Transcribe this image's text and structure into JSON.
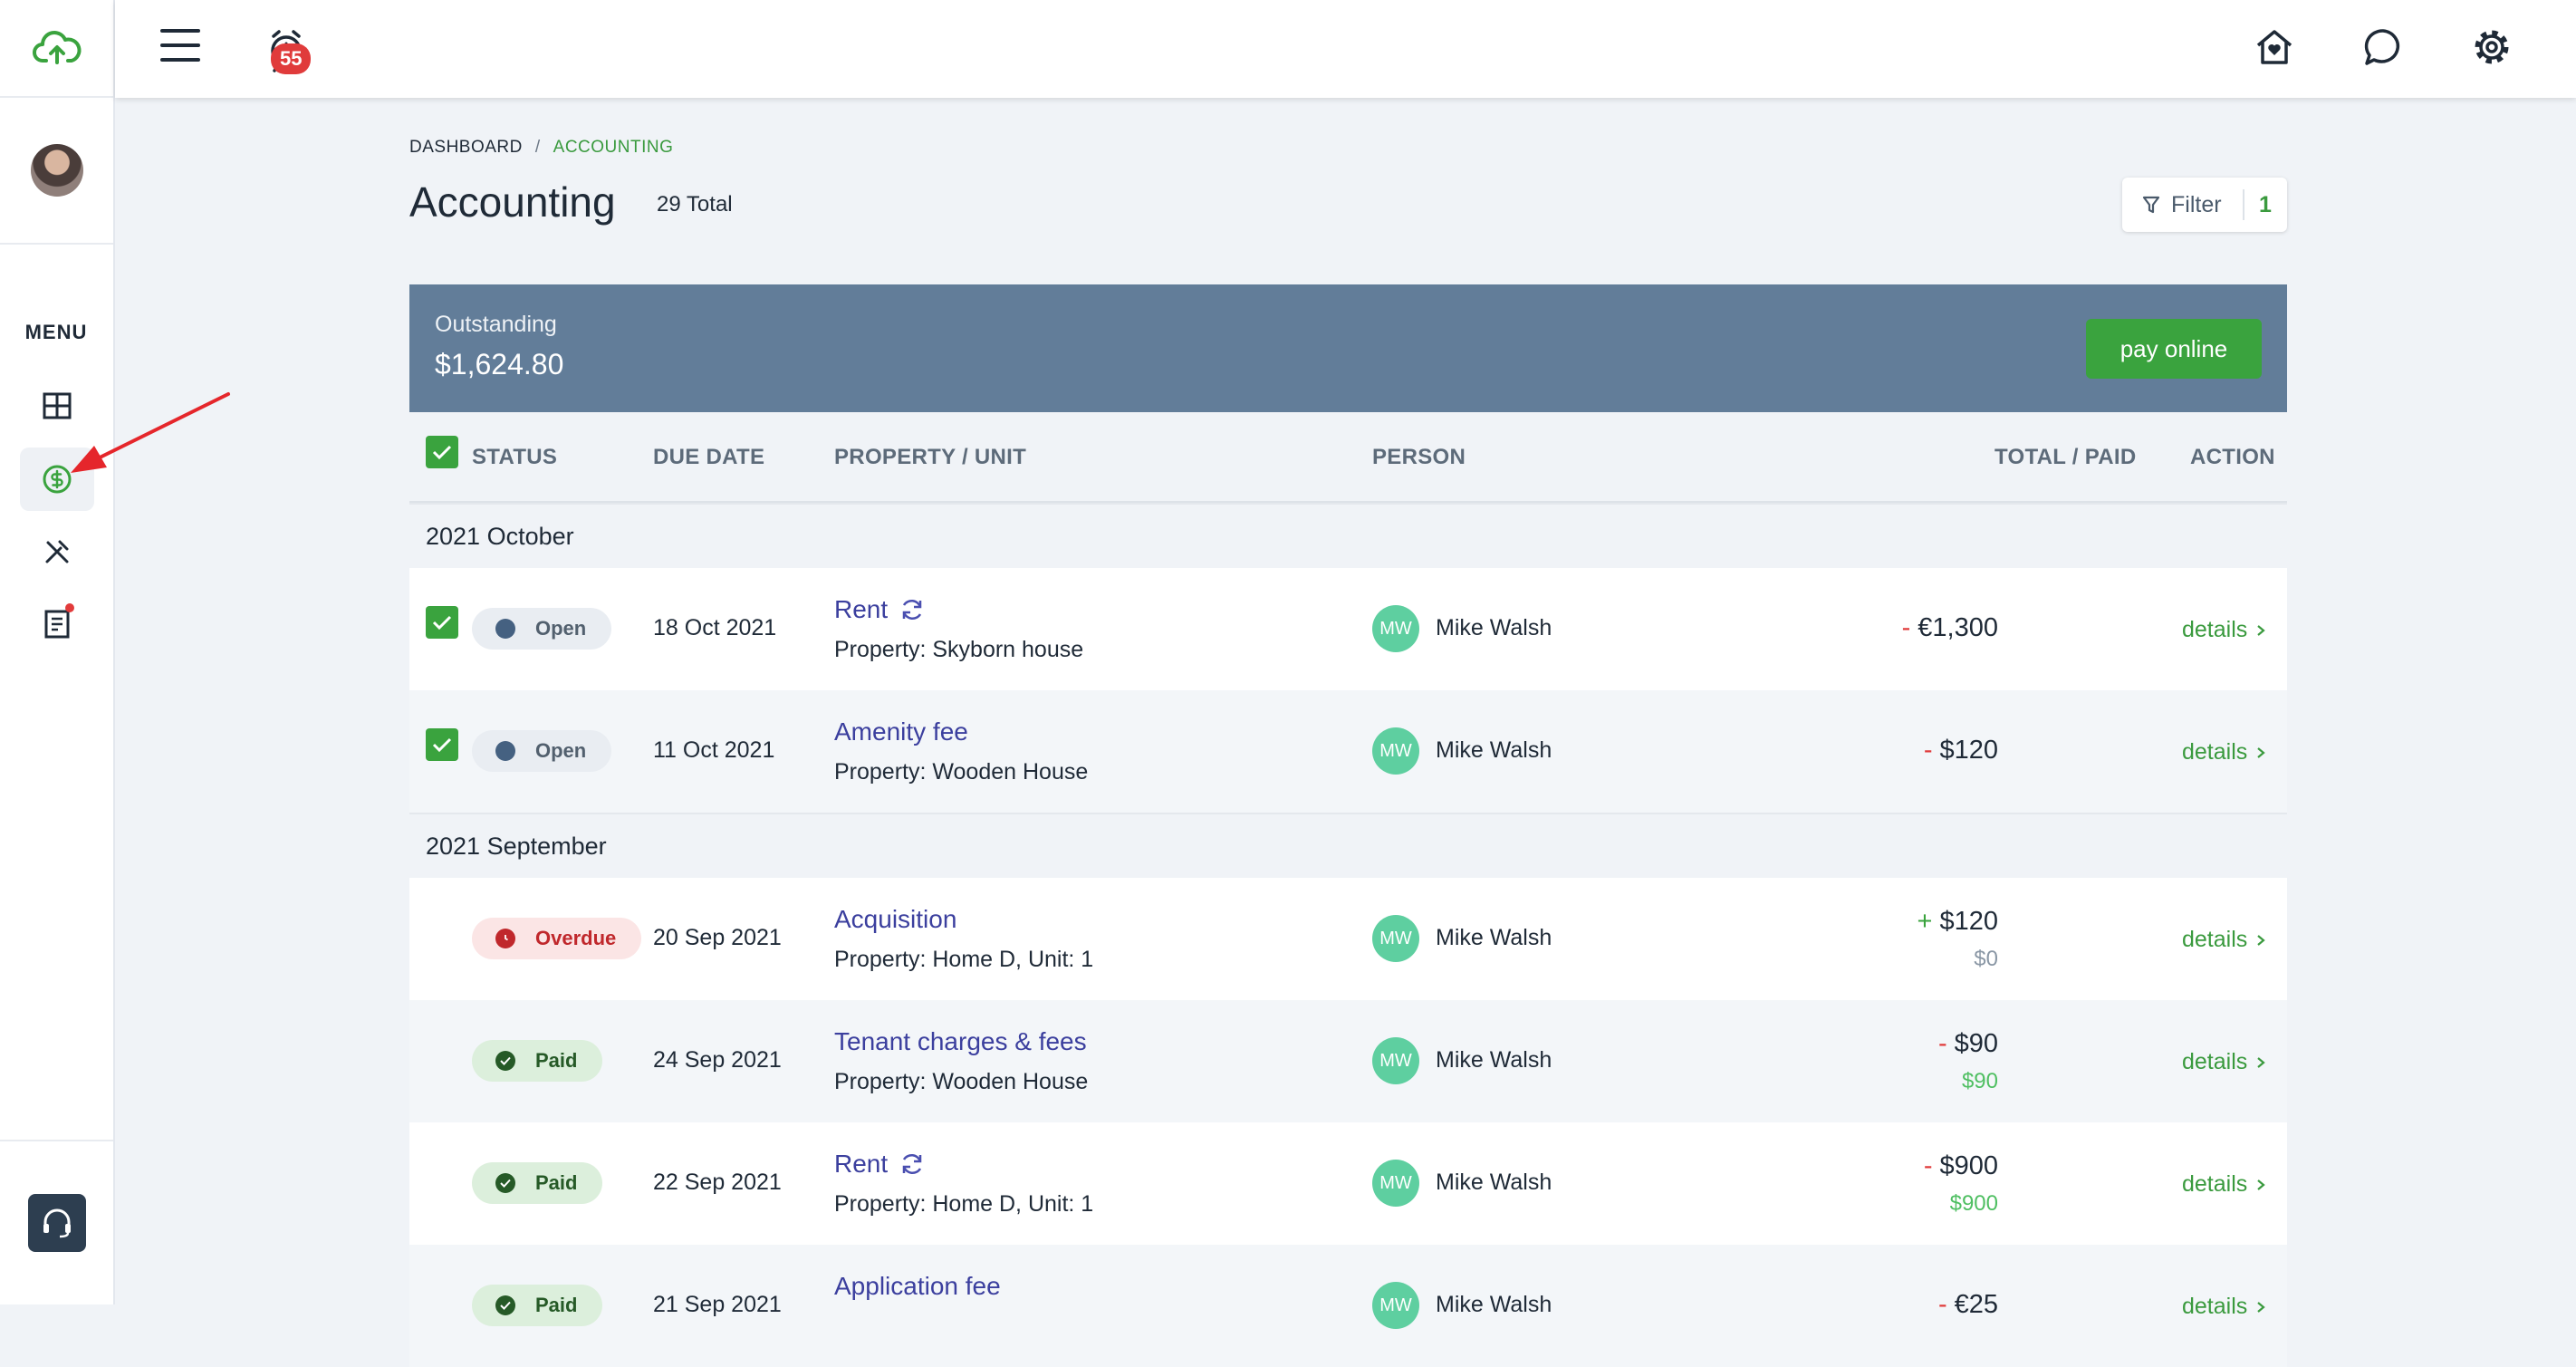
{
  "topbar": {
    "notification_count": "55"
  },
  "sidebar": {
    "menu_label": "MENU"
  },
  "breadcrumb": {
    "root": "DASHBOARD",
    "separator": "/",
    "current": "ACCOUNTING"
  },
  "page": {
    "title": "Accounting",
    "total": "29 Total"
  },
  "filter": {
    "label": "Filter",
    "count": "1"
  },
  "outstanding": {
    "label": "Outstanding",
    "amount": "$1,624.80",
    "pay_button": "pay online"
  },
  "table": {
    "headers": {
      "status": "STATUS",
      "due_date": "DUE DATE",
      "property": "PROPERTY / UNIT",
      "person": "PERSON",
      "total_paid": "TOTAL / PAID",
      "action": "ACTION"
    },
    "groups": [
      {
        "label": "2021 October",
        "rows": [
          {
            "checked": true,
            "status": "Open",
            "date": "18 Oct 2021",
            "title": "Rent",
            "recurring": true,
            "sub": "Property: Skyborn house",
            "initials": "MW",
            "person": "Mike Walsh",
            "sign": "-",
            "total": "€1,300",
            "paid": "",
            "action": "details"
          },
          {
            "checked": true,
            "status": "Open",
            "date": "11 Oct 2021",
            "title": "Amenity fee",
            "recurring": false,
            "sub": "Property: Wooden House",
            "initials": "MW",
            "person": "Mike Walsh",
            "sign": "-",
            "total": "$120",
            "paid": "",
            "action": "details"
          }
        ]
      },
      {
        "label": "2021 September",
        "rows": [
          {
            "checked": false,
            "status": "Overdue",
            "date": "20 Sep 2021",
            "title": "Acquisition",
            "recurring": false,
            "sub": "Property: Home D, Unit: 1",
            "initials": "MW",
            "person": "Mike Walsh",
            "sign": "+",
            "total": "$120",
            "paid": "$0",
            "action": "details"
          },
          {
            "checked": false,
            "status": "Paid",
            "date": "24 Sep 2021",
            "title": "Tenant charges & fees",
            "recurring": false,
            "sub": "Property: Wooden House",
            "initials": "MW",
            "person": "Mike Walsh",
            "sign": "-",
            "total": "$90",
            "paid": "$90",
            "action": "details"
          },
          {
            "checked": false,
            "status": "Paid",
            "date": "22 Sep 2021",
            "title": "Rent",
            "recurring": true,
            "sub": "Property: Home D, Unit: 1",
            "initials": "MW",
            "person": "Mike Walsh",
            "sign": "-",
            "total": "$900",
            "paid": "$900",
            "action": "details"
          },
          {
            "checked": false,
            "status": "Paid",
            "date": "21 Sep 2021",
            "title": "Application fee",
            "recurring": false,
            "sub": "",
            "initials": "MW",
            "person": "Mike Walsh",
            "sign": "-",
            "total": "€25",
            "paid": "",
            "action": "details"
          }
        ]
      }
    ]
  },
  "colors": {
    "accent_green": "#3aa33e",
    "header_blue": "#627d99",
    "link_purple": "#3b3f9e",
    "negative_red": "#e03b3b"
  }
}
